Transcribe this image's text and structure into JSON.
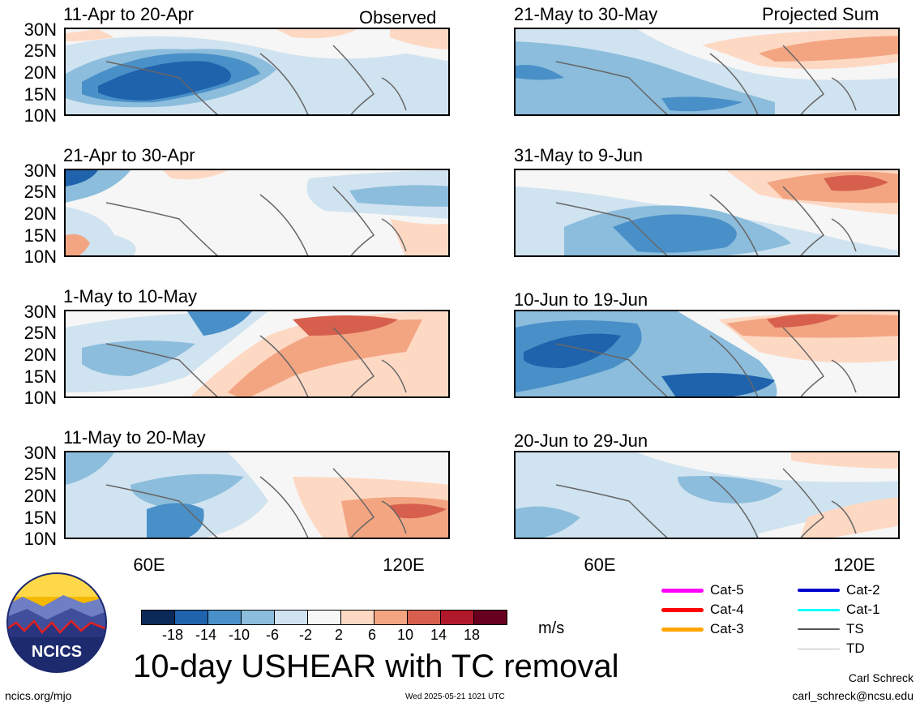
{
  "panels": [
    {
      "title": "11-Apr to 20-Apr",
      "tag": "Observed"
    },
    {
      "title": "21-May to 30-May",
      "tag": "Projected Sum"
    },
    {
      "title": "21-Apr to 30-Apr",
      "tag": ""
    },
    {
      "title": "31-May to 9-Jun",
      "tag": ""
    },
    {
      "title": "1-May to 10-May",
      "tag": ""
    },
    {
      "title": "10-Jun to 19-Jun",
      "tag": ""
    },
    {
      "title": "11-May to 20-May",
      "tag": ""
    },
    {
      "title": "20-Jun to 29-Jun",
      "tag": ""
    }
  ],
  "lat_labels": [
    "30N",
    "25N",
    "20N",
    "15N",
    "10N"
  ],
  "lon_labels": [
    "60E",
    "120E"
  ],
  "colorbar": {
    "colors": [
      "#0b2a5a",
      "#1f63ad",
      "#4a90c8",
      "#8cbddc",
      "#d0e3f0",
      "#f7f7f7",
      "#fdd9c4",
      "#f3a582",
      "#d6604d",
      "#b2182b",
      "#67001f"
    ],
    "labels": [
      "-18",
      "-14",
      "-10",
      "-6",
      "-2",
      "2",
      "6",
      "10",
      "14",
      "18"
    ],
    "units": "m/s"
  },
  "title": "10-day USHEAR with TC removal",
  "legend": [
    {
      "label": "Cat-5",
      "color": "#ff00ff"
    },
    {
      "label": "Cat-4",
      "color": "#ff0000"
    },
    {
      "label": "Cat-3",
      "color": "#ffa500"
    },
    {
      "label": "Cat-2",
      "color": "#0000cc"
    },
    {
      "label": "Cat-1",
      "color": "#00ffff"
    },
    {
      "label": "TS",
      "color": "#555555"
    },
    {
      "label": "TD",
      "color": "#bbbbbb"
    }
  ],
  "logo_text": "NCICS",
  "footer": {
    "site": "ncics.org/mjo",
    "timestamp": "Wed 2025-05-21 1021 UTC",
    "author": "Carl Schreck",
    "email": "carl_schreck@ncsu.edu"
  }
}
